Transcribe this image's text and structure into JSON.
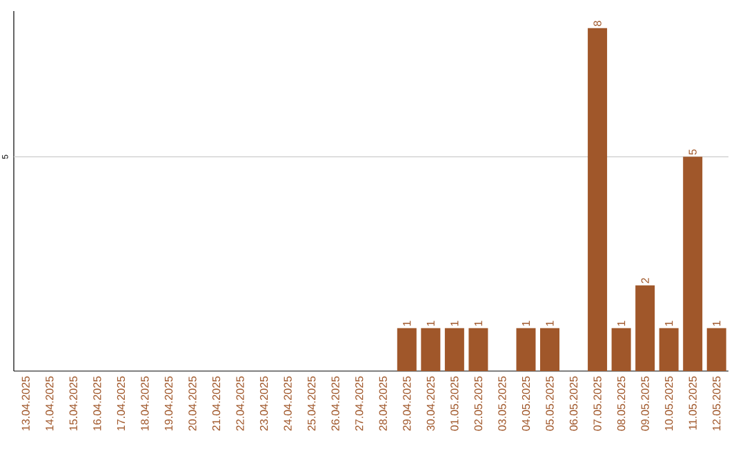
{
  "chart_data": {
    "type": "bar",
    "categories": [
      "13.04.2025",
      "14.04.2025",
      "15.04.2025",
      "16.04.2025",
      "17.04.2025",
      "18.04.2025",
      "19.04.2025",
      "20.04.2025",
      "21.04.2025",
      "22.04.2025",
      "23.04.2025",
      "24.04.2025",
      "25.04.2025",
      "26.04.2025",
      "27.04.2025",
      "28.04.2025",
      "29.04.2025",
      "30.04.2025",
      "01.05.2025",
      "02.05.2025",
      "03.05.2025",
      "04.05.2025",
      "05.05.2025",
      "06.05.2025",
      "07.05.2025",
      "08.05.2025",
      "09.05.2025",
      "10.05.2025",
      "11.05.2025",
      "12.05.2025"
    ],
    "values": [
      null,
      null,
      null,
      null,
      null,
      null,
      null,
      null,
      null,
      null,
      null,
      null,
      null,
      null,
      null,
      null,
      1,
      1,
      1,
      1,
      null,
      1,
      1,
      null,
      8,
      1,
      2,
      1,
      5,
      1
    ],
    "data_labels": true,
    "color": "#a0572a",
    "ylim": [
      0,
      8.4
    ],
    "ref_lines": [
      {
        "axis": "y",
        "value": 5,
        "label": "5",
        "color": "#cccccc"
      }
    ]
  }
}
